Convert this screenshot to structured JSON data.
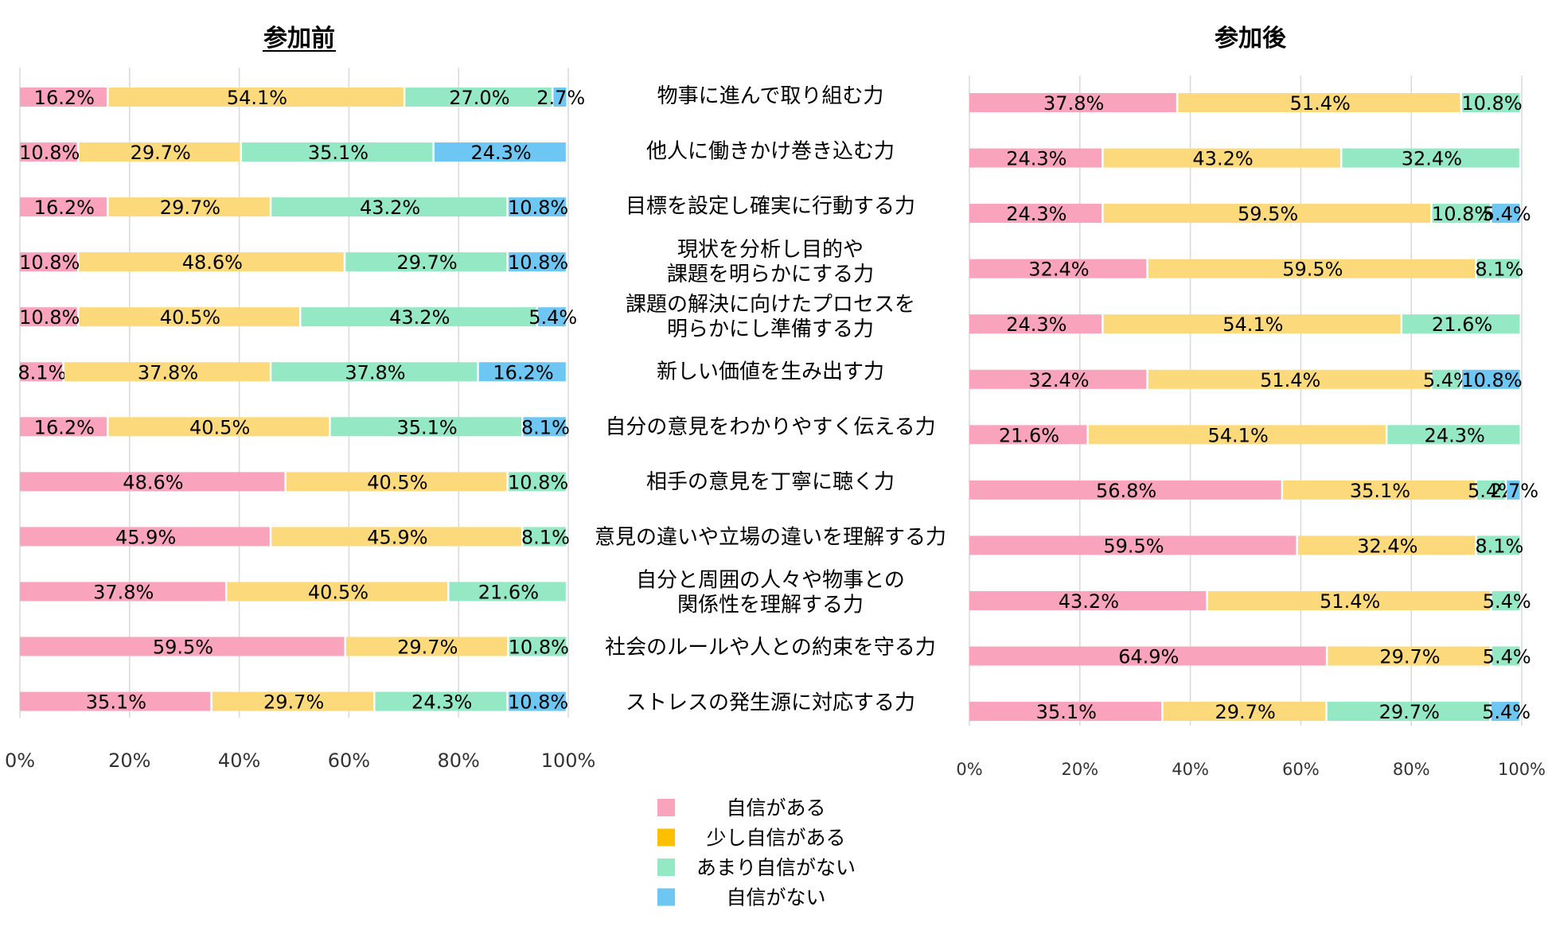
{
  "chart_data": [
    {
      "type": "bar",
      "stacked": true,
      "orientation": "horizontal",
      "title": "参加前",
      "categories": [
        "物事に進んで取り組む力",
        "他人に働きかけ巻き込む力",
        "目標を設定し確実に行動する力",
        "現状を分析し目的や\n課題を明らかにする力",
        "課題の解決に向けたプロセスを\n明らかにし準備する力",
        "新しい価値を生み出す力",
        "自分の意見をわかりやすく伝える力",
        "相手の意見を丁寧に聴く力",
        "意見の違いや立場の違いを理解する力",
        "自分と周囲の人々や物事との\n関係性を理解する力",
        "社会のルールや人との約束を守る力",
        "ストレスの発生源に対応する力"
      ],
      "series": [
        {
          "name": "自信がある",
          "values": [
            16.2,
            10.8,
            16.2,
            10.8,
            10.8,
            8.1,
            16.2,
            48.6,
            45.9,
            37.8,
            59.5,
            35.1
          ]
        },
        {
          "name": "少し自信がある",
          "values": [
            54.1,
            29.7,
            29.7,
            48.6,
            40.5,
            37.8,
            40.5,
            40.5,
            45.9,
            40.5,
            29.7,
            29.7
          ]
        },
        {
          "name": "あまり自信がない",
          "values": [
            27.0,
            35.1,
            43.2,
            29.7,
            43.2,
            37.8,
            35.1,
            10.8,
            8.1,
            21.6,
            10.8,
            24.3
          ]
        },
        {
          "name": "自信がない",
          "values": [
            2.7,
            24.3,
            10.8,
            10.8,
            5.4,
            16.2,
            8.1,
            0,
            0,
            0,
            0,
            10.8
          ]
        }
      ],
      "xlim": [
        0,
        100
      ],
      "xticks": [
        "0%",
        "20%",
        "40%",
        "60%",
        "80%",
        "100%"
      ]
    },
    {
      "type": "bar",
      "stacked": true,
      "orientation": "horizontal",
      "title": "参加後",
      "categories": [
        "物事に進んで取り組む力",
        "他人に働きかけ巻き込む力",
        "目標を設定し確実に行動する力",
        "現状を分析し目的や\n課題を明らかにする力",
        "課題の解決に向けたプロセスを\n明らかにし準備する力",
        "新しい価値を生み出す力",
        "自分の意見をわかりやすく伝える力",
        "相手の意見を丁寧に聴く力",
        "意見の違いや立場の違いを理解する力",
        "自分と周囲の人々や物事との\n関係性を理解する力",
        "社会のルールや人との約束を守る力",
        "ストレスの発生源に対応する力"
      ],
      "series": [
        {
          "name": "自信がある",
          "values": [
            37.8,
            24.3,
            24.3,
            32.4,
            24.3,
            32.4,
            21.6,
            56.8,
            59.5,
            43.2,
            64.9,
            35.1
          ]
        },
        {
          "name": "少し自信がある",
          "values": [
            51.4,
            43.2,
            59.5,
            59.5,
            54.1,
            51.4,
            54.1,
            35.1,
            32.4,
            51.4,
            29.7,
            29.7
          ]
        },
        {
          "name": "あまり自信がない",
          "values": [
            10.8,
            32.4,
            10.8,
            8.1,
            21.6,
            5.4,
            24.3,
            5.4,
            8.1,
            5.4,
            5.4,
            29.7
          ]
        },
        {
          "name": "自信がない",
          "values": [
            0,
            0,
            5.4,
            0,
            0,
            10.8,
            0,
            2.7,
            0,
            0,
            0,
            5.4
          ]
        }
      ],
      "xlim": [
        0,
        100
      ],
      "xticks": [
        "0%",
        "20%",
        "40%",
        "60%",
        "80%",
        "100%"
      ]
    }
  ],
  "legend": [
    {
      "label": "自信がある",
      "color": "#f9a4bc"
    },
    {
      "label": "少し自信がある",
      "color": "#fcc000"
    },
    {
      "label": "あまり自信がない",
      "color": "#94e8c3"
    },
    {
      "label": "自信がない",
      "color": "#6dc7f2"
    }
  ],
  "colors": {
    "bar_series": [
      "#f9a4bc",
      "#fcd97a",
      "#94e8c3",
      "#6dc7f2"
    ],
    "gridline": "#d9d9d9"
  }
}
